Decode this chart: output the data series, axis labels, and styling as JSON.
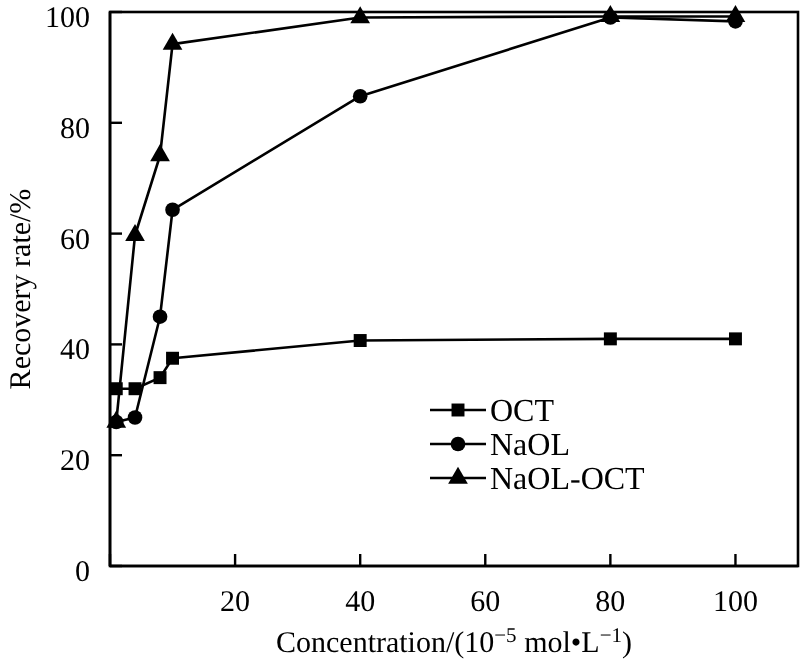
{
  "chart_data": {
    "type": "line",
    "xlabel": "Concentration/(10$^{−5}$ mol•L$^{−1}$)",
    "ylabel": "Recovery rate/%",
    "x": [
      1,
      4,
      8,
      10,
      40,
      80,
      100
    ],
    "series": [
      {
        "name": "OCT",
        "color": "#000000",
        "marker": "square",
        "values": [
          32,
          32,
          34,
          37.5,
          40.7,
          41,
          41
        ]
      },
      {
        "name": "NaOL",
        "color": "#000000",
        "marker": "circle",
        "values": [
          26,
          26.8,
          45,
          64.3,
          84.8,
          99,
          98.3
        ]
      },
      {
        "name": "NaOL-OCT",
        "color": "#000000",
        "marker": "triangle",
        "values": [
          26,
          59.7,
          74.1,
          94.2,
          99,
          99.2,
          99.2
        ]
      }
    ],
    "xlim": [
      0,
      110
    ],
    "xticks": [
      {
        "value": 0,
        "label": null
      },
      20,
      40,
      60,
      80,
      100
    ],
    "ylim": [
      0,
      100
    ],
    "yticks": [
      0,
      20,
      40,
      60,
      80,
      100
    ],
    "grid": false,
    "legend": "bottom right",
    "line_style": "solid"
  }
}
